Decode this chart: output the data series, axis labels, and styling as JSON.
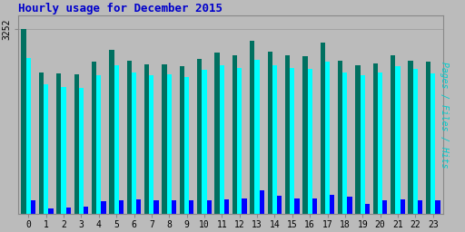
{
  "title": "Hourly usage for December 2015",
  "title_color": "#0000cc",
  "background_color": "#bbbbbb",
  "plot_bg_color": "#bbbbbb",
  "ytick_label": "3252",
  "hours": [
    0,
    1,
    2,
    3,
    4,
    5,
    6,
    7,
    8,
    9,
    10,
    11,
    12,
    13,
    14,
    15,
    16,
    17,
    18,
    19,
    20,
    21,
    22,
    23
  ],
  "pages": [
    3252,
    2500,
    2480,
    2460,
    2680,
    2900,
    2700,
    2640,
    2640,
    2600,
    2740,
    2840,
    2800,
    3060,
    2860,
    2800,
    2780,
    3020,
    2700,
    2620,
    2660,
    2800,
    2700,
    2680
  ],
  "files": [
    2750,
    2280,
    2240,
    2220,
    2440,
    2620,
    2500,
    2440,
    2460,
    2420,
    2540,
    2620,
    2580,
    2720,
    2620,
    2580,
    2560,
    2680,
    2500,
    2440,
    2500,
    2600,
    2560,
    2480
  ],
  "hits": [
    240,
    100,
    120,
    130,
    220,
    240,
    260,
    240,
    250,
    240,
    240,
    260,
    280,
    420,
    320,
    280,
    280,
    340,
    300,
    180,
    240,
    260,
    240,
    240
  ],
  "pages_color": "#007060",
  "files_color": "#00ffff",
  "hits_color": "#0000ff",
  "bar_width": 0.27,
  "ylim": [
    0,
    3500
  ],
  "xlim": [
    -0.6,
    23.6
  ],
  "ylabel_right": "Pages / Files / Hits",
  "ylabel_right_color": "#00cccc"
}
